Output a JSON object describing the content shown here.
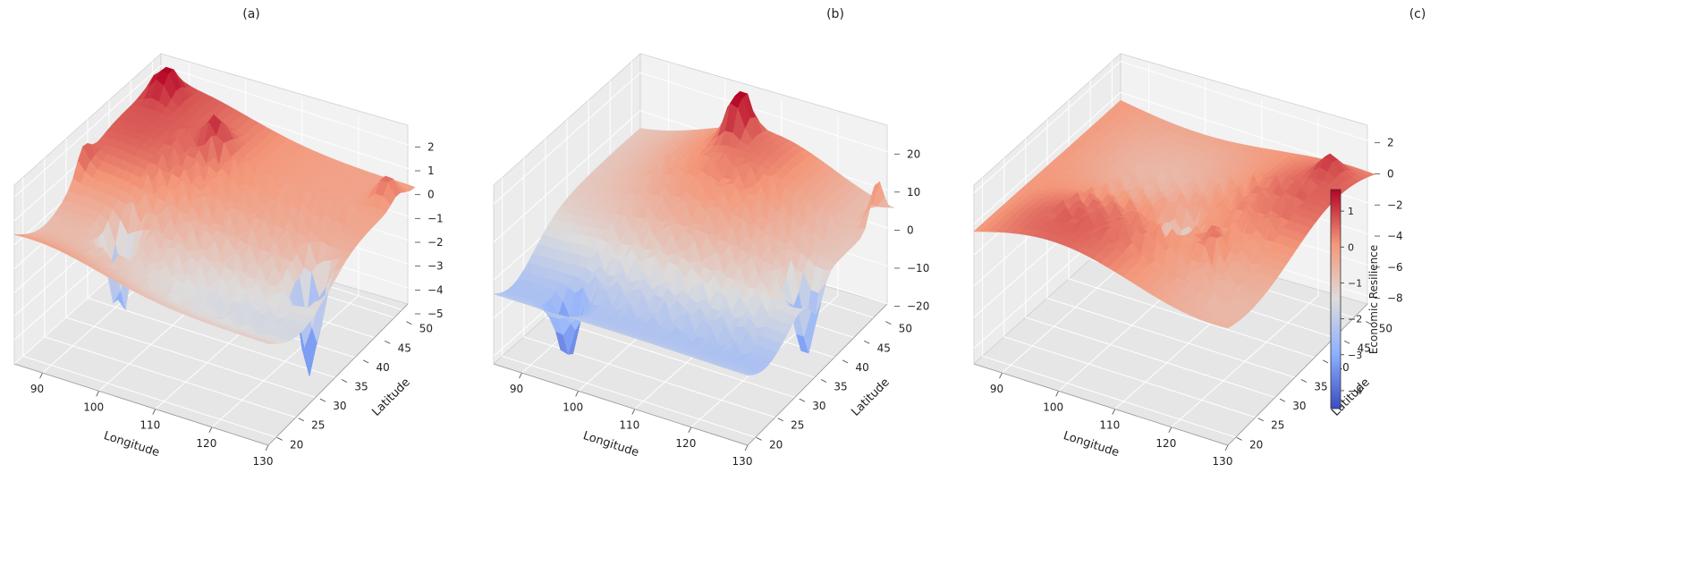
{
  "chart_data": [
    {
      "type": "surface3d",
      "title": "(a)",
      "xlabel": "Longitude",
      "ylabel": "Latitude",
      "zlabel": "",
      "xticks": [
        "90",
        "100",
        "110",
        "120",
        "130"
      ],
      "yticks": [
        "20",
        "25",
        "30",
        "35",
        "40",
        "45",
        "50"
      ],
      "zticks": [
        "2",
        "1",
        "0",
        "−1",
        "−2",
        "−3",
        "−4",
        "−5"
      ],
      "xlim": [
        85,
        130
      ],
      "ylim": [
        18,
        52
      ],
      "zlim": [
        -5,
        2.5
      ],
      "colormap": "coolwarm",
      "peaks": [
        {
          "lon": 88,
          "lat": 49,
          "z": 2.2
        },
        {
          "lon": 100,
          "lat": 45,
          "z": 1.6
        },
        {
          "lon": 84,
          "lat": 34,
          "z": 1.4
        },
        {
          "lon": 128,
          "lat": 48,
          "z": 1.2
        },
        {
          "lon": 126,
          "lat": 33,
          "z": -4.9
        },
        {
          "lon": 96,
          "lat": 28,
          "z": -3.8
        }
      ]
    },
    {
      "type": "surface3d",
      "title": "(b)",
      "xlabel": "Longitude",
      "ylabel": "Latitude",
      "zlabel": "",
      "xticks": [
        "90",
        "100",
        "110",
        "120",
        "130"
      ],
      "yticks": [
        "20",
        "25",
        "30",
        "35",
        "40",
        "45",
        "50"
      ],
      "zticks": [
        "20",
        "10",
        "0",
        "−10",
        "−20"
      ],
      "xlim": [
        85,
        130
      ],
      "ylim": [
        18,
        52
      ],
      "zlim": [
        -22,
        25
      ],
      "colormap": "coolwarm",
      "peaks": [
        {
          "lon": 104,
          "lat": 50,
          "z": 22
        },
        {
          "lon": 131,
          "lat": 48,
          "z": 18
        },
        {
          "lon": 128,
          "lat": 34,
          "z": -22
        },
        {
          "lon": 95,
          "lat": 22,
          "z": -18
        }
      ]
    },
    {
      "type": "surface3d",
      "title": "(c)",
      "xlabel": "Longitude",
      "ylabel": "Latitude",
      "zlabel": "",
      "xticks": [
        "90",
        "100",
        "110",
        "120",
        "130"
      ],
      "yticks": [
        "20",
        "25",
        "30",
        "35",
        "40",
        "45",
        "50"
      ],
      "zticks": [
        "2",
        "0",
        "−2",
        "−4",
        "−6",
        "−8"
      ],
      "xlim": [
        85,
        130
      ],
      "ylim": [
        18,
        52
      ],
      "zlim": [
        -9,
        2.5
      ],
      "colormap": "coolwarm",
      "colorbar": {
        "label": "Economic Resilience",
        "ticks": [
          "1",
          "0",
          "−1",
          "−2",
          "−3",
          "−4"
        ],
        "range": [
          -4.5,
          1.6
        ]
      },
      "peaks": [
        {
          "lon": 125,
          "lat": 48,
          "z": 1.5
        },
        {
          "lon": 118,
          "lat": 30,
          "z": 1.2
        },
        {
          "lon": 110,
          "lat": 33,
          "z": -4.5
        }
      ]
    }
  ]
}
